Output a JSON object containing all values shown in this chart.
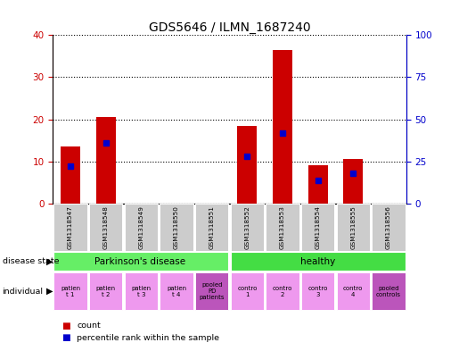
{
  "title": "GDS5646 / ILMN_1687240",
  "samples": [
    "GSM1318547",
    "GSM1318548",
    "GSM1318549",
    "GSM1318550",
    "GSM1318551",
    "GSM1318552",
    "GSM1318553",
    "GSM1318554",
    "GSM1318555",
    "GSM1318556"
  ],
  "count_values": [
    13.5,
    20.5,
    0,
    0,
    0,
    18.5,
    36.5,
    9,
    10.5,
    0
  ],
  "percentile_values": [
    22.0,
    36.0,
    0,
    0,
    0,
    28.0,
    42.0,
    14.0,
    18.0,
    0
  ],
  "ylim_left": [
    0,
    40
  ],
  "ylim_right": [
    0,
    100
  ],
  "yticks_left": [
    0,
    10,
    20,
    30,
    40
  ],
  "yticks_right": [
    0,
    25,
    50,
    75,
    100
  ],
  "bar_color": "#cc0000",
  "percentile_color": "#0000cc",
  "bar_width": 0.55,
  "background_color": "#ffffff",
  "plot_bg_color": "#ffffff",
  "tick_label_color_left": "#cc0000",
  "tick_label_color_right": "#0000cc",
  "sample_bg_color": "#cccccc",
  "pd_color": "#66ee66",
  "healthy_color": "#44dd44",
  "ind_normal_bg": "#ee99ee",
  "ind_pooled_bg": "#bb55bb",
  "ind_texts": [
    "patien\nt 1",
    "patien\nt 2",
    "patien\nt 3",
    "patien\nt 4",
    "pooled\nPD\npatients",
    "contro\n1",
    "contro\n2",
    "contro\n3",
    "contro\n4",
    "pooled\ncontrols"
  ],
  "ind_pooled_indices": [
    4,
    9
  ]
}
